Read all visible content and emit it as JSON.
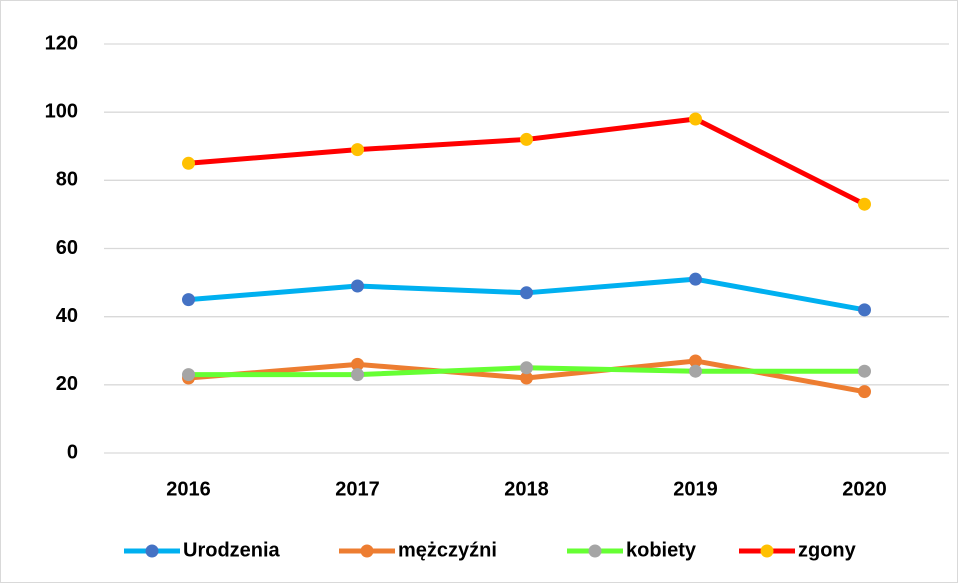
{
  "chart_data": {
    "type": "line",
    "categories": [
      "2016",
      "2017",
      "2018",
      "2019",
      "2020"
    ],
    "series": [
      {
        "name": "Urodzenia",
        "color": "#00b0f0",
        "marker_color": "#4472c4",
        "values": [
          45,
          49,
          47,
          51,
          42
        ]
      },
      {
        "name": "mężczyźni",
        "color": "#ed7d31",
        "marker_color": "#ed7d31",
        "values": [
          22,
          26,
          22,
          27,
          18
        ]
      },
      {
        "name": "kobiety",
        "color": "#66ff33",
        "marker_color": "#a5a5a5",
        "values": [
          23,
          23,
          25,
          24,
          24
        ]
      },
      {
        "name": "zgony",
        "color": "#ff0000",
        "marker_color": "#ffc000",
        "values": [
          85,
          89,
          92,
          98,
          73
        ]
      }
    ],
    "ylim": [
      0,
      120
    ],
    "yticks": [
      0,
      20,
      40,
      60,
      80,
      100,
      120
    ],
    "grid": true,
    "legend": "bottom"
  }
}
